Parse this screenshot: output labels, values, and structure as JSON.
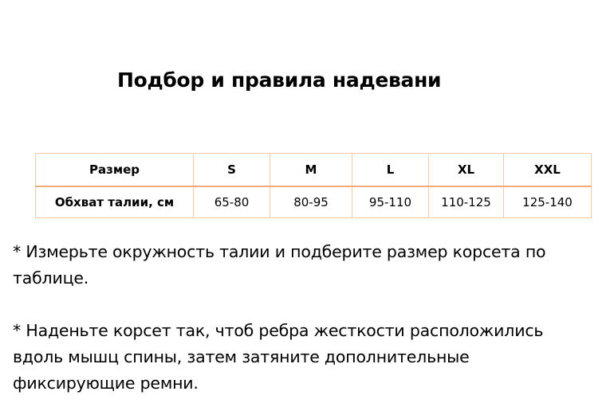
{
  "title": "Подбор и правила надевани",
  "table": {
    "header": [
      "Размер",
      "S",
      "M",
      "L",
      "XL",
      "XXL"
    ],
    "row": [
      "Обхват талии, см",
      "65-80",
      "80-95",
      "95-110",
      "110-125",
      "125-140"
    ]
  },
  "paragraphs": [
    [
      "* Измерьте окружность талии и подберите размер корсета по",
      "таблице."
    ],
    [
      "* Наденьте корсет так, чтоб ребра жесткости расположились",
      "вдоль мышц спины, затем затяните дополнительные",
      "фиксирующие ремни."
    ]
  ]
}
